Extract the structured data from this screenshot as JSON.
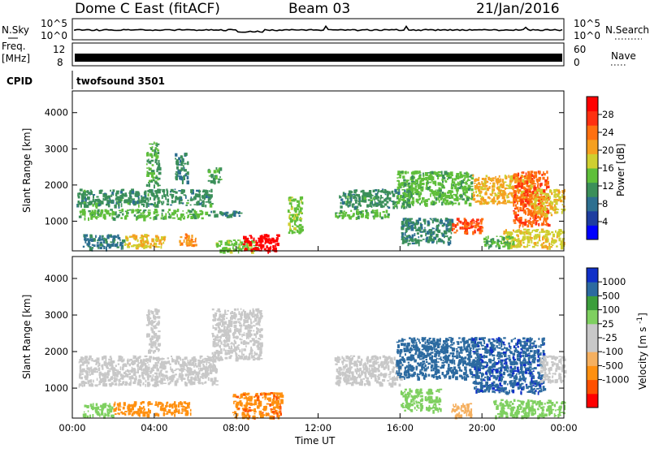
{
  "header": {
    "radar": "Dome C East (fitACF)",
    "beam": "Beam 03",
    "date": "21/Jan/2016"
  },
  "top_panels": {
    "nsky_label": "N.Sky",
    "nsearch_label": "N.Search",
    "left_ticks": [
      "10^5",
      "10^0"
    ],
    "right_ticks": [
      "10^5",
      "10^0"
    ],
    "freq_label_1": "Freq.",
    "freq_label_2": "[MHz]",
    "freq_ticks": [
      "12",
      "8"
    ],
    "nave_label": "Nave",
    "nave_ticks": [
      "60",
      "0"
    ],
    "cpid_label": "CPID",
    "cpid_value": "twofsound 3501"
  },
  "colors": {
    "power": [
      "#0000ff",
      "#1e3da0",
      "#2d6f90",
      "#3b8f5a",
      "#5fbf3a",
      "#cfcf30",
      "#f5a020",
      "#ff7010",
      "#ff3010",
      "#ff0000"
    ],
    "velocity": [
      "#ff0000",
      "#ff5000",
      "#ff9010",
      "#f5b060",
      "#c8c8c8",
      "#c8c8c8",
      "#7fd060",
      "#3c9e3c",
      "#2c6aa0",
      "#1030c8"
    ]
  },
  "chart_data": [
    {
      "type": "heatmap",
      "name": "power",
      "ylabel": "Slant Range [km]",
      "ylim": [
        180,
        4600
      ],
      "y_ticks": [
        "1000",
        "2000",
        "3000",
        "4000"
      ],
      "x_ticks": [
        "00:00",
        "04:00",
        "08:00",
        "12:00",
        "16:00",
        "20:00",
        "00:00"
      ],
      "colorbar_label": "Power [dB]",
      "colorbar_range": [
        0,
        32
      ],
      "colorbar_ticks": [
        "4",
        "8",
        "12",
        "16",
        "20",
        "24",
        "28"
      ],
      "regions": [
        {
          "t": [
            0.3,
            6.5
          ],
          "r": [
            1100,
            1350
          ],
          "v": 14
        },
        {
          "t": [
            0.2,
            6.8
          ],
          "r": [
            1450,
            1900
          ],
          "v": 11
        },
        {
          "t": [
            6.5,
            8.2
          ],
          "r": [
            1150,
            1300
          ],
          "v": 10
        },
        {
          "t": [
            0.5,
            2.5
          ],
          "r": [
            250,
            650
          ],
          "v": 9
        },
        {
          "t": [
            2.5,
            4.5
          ],
          "r": [
            300,
            650
          ],
          "v": 19
        },
        {
          "t": [
            5.2,
            6.0
          ],
          "r": [
            350,
            700
          ],
          "v": 22
        },
        {
          "t": [
            7.0,
            9.0
          ],
          "r": [
            200,
            500
          ],
          "v": 15
        },
        {
          "t": [
            8.3,
            10.0
          ],
          "r": [
            200,
            650
          ],
          "v": 31
        },
        {
          "t": [
            3.6,
            4.2
          ],
          "r": [
            2000,
            3200
          ],
          "v": 13
        },
        {
          "t": [
            5.0,
            5.6
          ],
          "r": [
            2100,
            2900
          ],
          "v": 10
        },
        {
          "t": [
            6.6,
            7.2
          ],
          "r": [
            2100,
            2500
          ],
          "v": 12
        },
        {
          "t": [
            10.5,
            11.2
          ],
          "r": [
            700,
            1700
          ],
          "v": 15
        },
        {
          "t": [
            12.8,
            15.5
          ],
          "r": [
            1120,
            1330
          ],
          "v": 14
        },
        {
          "t": [
            13.0,
            16.5
          ],
          "r": [
            1400,
            1900
          ],
          "v": 11
        },
        {
          "t": [
            15.8,
            19.5
          ],
          "r": [
            1500,
            2400
          ],
          "v": 14
        },
        {
          "t": [
            16.0,
            18.5
          ],
          "r": [
            400,
            1100
          ],
          "v": 10
        },
        {
          "t": [
            18.5,
            20.0
          ],
          "r": [
            700,
            1100
          ],
          "v": 26
        },
        {
          "t": [
            19.5,
            22.5
          ],
          "r": [
            1500,
            2300
          ],
          "v": 20
        },
        {
          "t": [
            21.0,
            24.0
          ],
          "r": [
            300,
            800
          ],
          "v": 18
        },
        {
          "t": [
            21.5,
            23.2
          ],
          "r": [
            900,
            2400
          ],
          "v": 25
        },
        {
          "t": [
            22.5,
            24.0
          ],
          "r": [
            1200,
            1900
          ],
          "v": 19
        },
        {
          "t": [
            20.0,
            21.5
          ],
          "r": [
            300,
            600
          ],
          "v": 13
        }
      ]
    },
    {
      "type": "heatmap",
      "name": "velocity",
      "ylabel": "Slant Range [km]",
      "xlabel": "Time UT",
      "ylim": [
        180,
        4600
      ],
      "y_ticks": [
        "1000",
        "2000",
        "3000",
        "4000"
      ],
      "x_ticks": [
        "00:00",
        "04:00",
        "08:00",
        "12:00",
        "16:00",
        "20:00",
        "00:00"
      ],
      "colorbar_label": "Velocity [m s-1]",
      "colorbar_ticks": [
        "1000",
        "500",
        "100",
        "25",
        "-25",
        "-100",
        "-500",
        "-1000"
      ],
      "regions": [
        {
          "t": [
            0.3,
            7.0
          ],
          "r": [
            1100,
            1900
          ],
          "v": 0
        },
        {
          "t": [
            0.5,
            2.0
          ],
          "r": [
            250,
            600
          ],
          "v": 60
        },
        {
          "t": [
            2.0,
            3.8
          ],
          "r": [
            300,
            650
          ],
          "v": -400
        },
        {
          "t": [
            4.0,
            5.8
          ],
          "r": [
            300,
            650
          ],
          "v": -300
        },
        {
          "t": [
            7.8,
            10.2
          ],
          "r": [
            200,
            900
          ],
          "v": -450
        },
        {
          "t": [
            3.6,
            4.2
          ],
          "r": [
            2000,
            3200
          ],
          "v": -20
        },
        {
          "t": [
            6.8,
            9.2
          ],
          "r": [
            1800,
            3200
          ],
          "v": 5
        },
        {
          "t": [
            12.8,
            16.0
          ],
          "r": [
            1120,
            1900
          ],
          "v": 0
        },
        {
          "t": [
            15.8,
            19.8
          ],
          "r": [
            1300,
            2400
          ],
          "v": 800
        },
        {
          "t": [
            16.0,
            18.0
          ],
          "r": [
            400,
            1000
          ],
          "v": 80
        },
        {
          "t": [
            19.5,
            23.0
          ],
          "r": [
            900,
            2400
          ],
          "v": 900
        },
        {
          "t": [
            20.5,
            24.0
          ],
          "r": [
            250,
            700
          ],
          "v": 70
        },
        {
          "t": [
            22.8,
            24.0
          ],
          "r": [
            1200,
            1900
          ],
          "v": 5
        },
        {
          "t": [
            18.5,
            19.5
          ],
          "r": [
            250,
            600
          ],
          "v": -60
        }
      ]
    }
  ]
}
